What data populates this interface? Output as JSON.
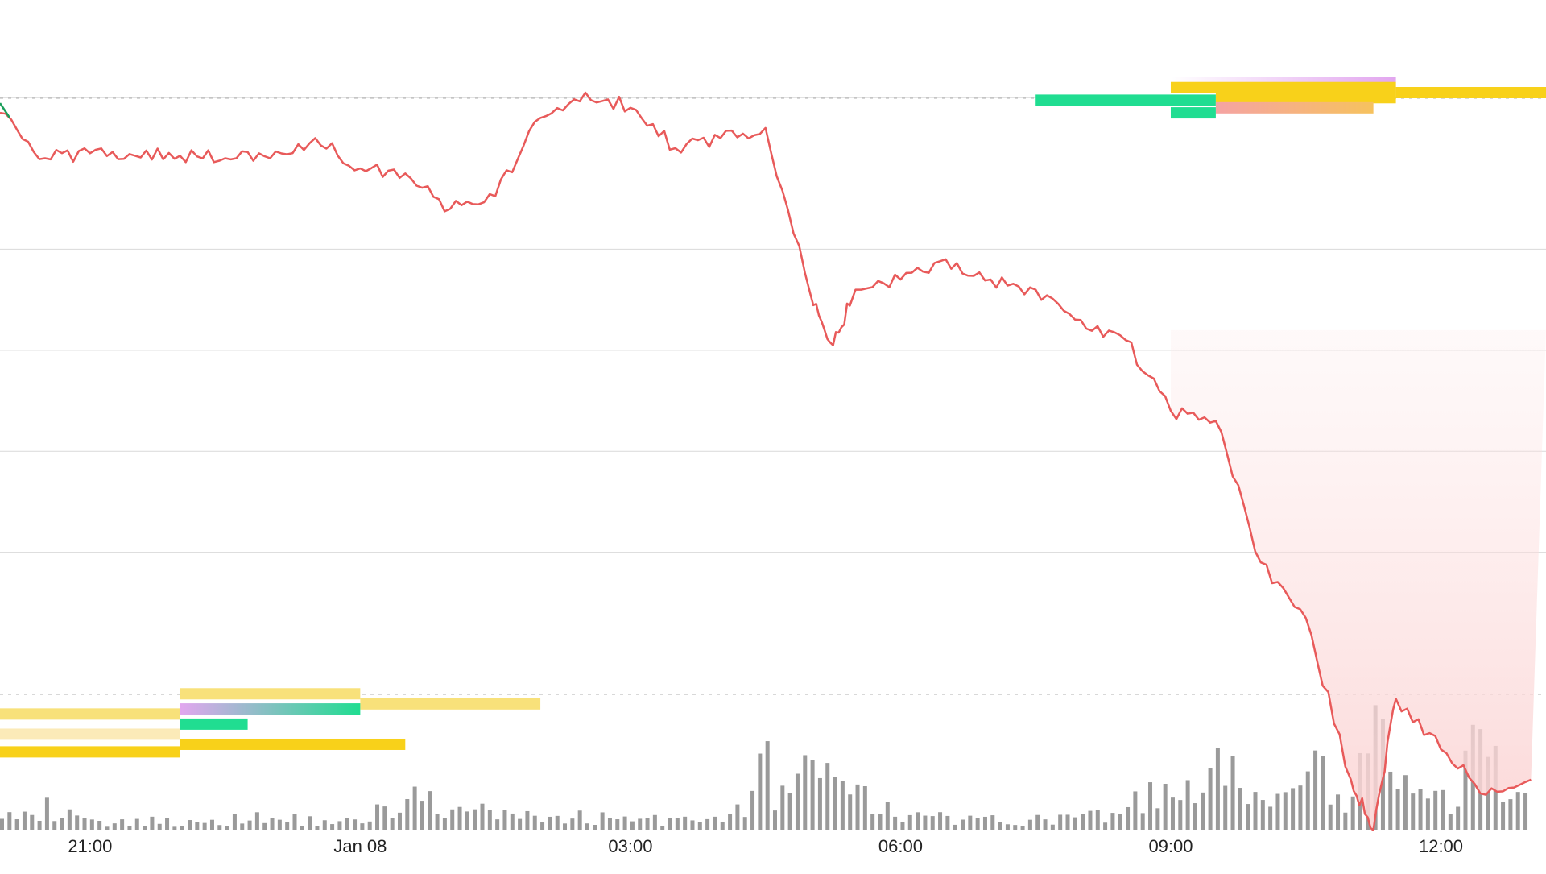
{
  "chart_data": {
    "type": "line",
    "x_tick_labels": [
      "21:00",
      "Jan 08",
      "03:00",
      "06:00",
      "09:00",
      "12:00"
    ],
    "x_ticks": [
      "2024-01-07T21:00",
      "2024-01-08T00:00",
      "2024-01-08T03:00",
      "2024-01-08T06:00",
      "2024-01-08T09:00",
      "2024-01-08T12:00"
    ],
    "x_range": [
      "2024-01-07T20:00",
      "2024-01-08T13:10"
    ],
    "y_axis_visible": false,
    "grid": "horizontal",
    "legend": "none",
    "price_series": {
      "x": [
        "2024-01-07T20:00",
        "2024-01-07T20:30",
        "2024-01-07T21:00",
        "2024-01-07T21:30",
        "2024-01-07T22:00",
        "2024-01-07T22:30",
        "2024-01-07T23:00",
        "2024-01-07T23:30",
        "2024-01-08T00:00",
        "2024-01-08T00:30",
        "2024-01-08T01:00",
        "2024-01-08T01:30",
        "2024-01-08T02:00",
        "2024-01-08T02:30",
        "2024-01-08T03:00",
        "2024-01-08T03:30",
        "2024-01-08T04:00",
        "2024-01-08T04:30",
        "2024-01-08T05:00",
        "2024-01-08T05:15",
        "2024-01-08T05:30",
        "2024-01-08T06:00",
        "2024-01-08T06:30",
        "2024-01-08T07:00",
        "2024-01-08T07:30",
        "2024-01-08T08:00",
        "2024-01-08T08:30",
        "2024-01-08T09:00",
        "2024-01-08T09:30",
        "2024-01-08T10:00",
        "2024-01-08T10:30",
        "2024-01-08T11:00",
        "2024-01-08T11:15",
        "2024-01-08T11:30",
        "2024-01-08T12:00",
        "2024-01-08T12:30",
        "2024-01-08T13:00"
      ],
      "y": [
        46550,
        46460,
        46470,
        46465,
        46465,
        46460,
        46460,
        46500,
        46440,
        46430,
        46360,
        46385,
        46540,
        46590,
        46560,
        46480,
        46500,
        46520,
        46190,
        46090,
        46200,
        46220,
        46260,
        46220,
        46200,
        46140,
        46100,
        45960,
        45940,
        45660,
        45550,
        45230,
        45130,
        45390,
        45290,
        45200,
        45230
      ],
      "up_color": "#1a9e5a",
      "down_color": "#e85a5a"
    },
    "reference_levels": [
      46590,
      45410
    ],
    "gridline_levels": [
      46580,
      46280,
      46080,
      45880,
      45680
    ],
    "volume": {
      "x": [
        "2024-01-07T20:00",
        "2024-01-07T21:00",
        "2024-01-07T22:00",
        "2024-01-07T23:00",
        "2024-01-08T00:00",
        "2024-01-08T00:30",
        "2024-01-08T01:00",
        "2024-01-08T02:00",
        "2024-01-08T03:00",
        "2024-01-08T04:00",
        "2024-01-08T04:30",
        "2024-01-08T05:00",
        "2024-01-08T06:00",
        "2024-01-08T07:00",
        "2024-01-08T08:00",
        "2024-01-08T09:00",
        "2024-01-08T09:30",
        "2024-01-08T10:00",
        "2024-01-08T10:30",
        "2024-01-08T11:00",
        "2024-01-08T11:15",
        "2024-01-08T11:30",
        "2024-01-08T12:00",
        "2024-01-08T12:30",
        "2024-01-08T13:00"
      ],
      "values": [
        30,
        6,
        8,
        10,
        7,
        30,
        16,
        12,
        10,
        7,
        50,
        45,
        12,
        8,
        10,
        32,
        48,
        30,
        45,
        40,
        85,
        35,
        30,
        75,
        20
      ],
      "color": "#9a9a9a"
    },
    "liquidity_bands": [
      {
        "price": 46610,
        "x_start": "2024-01-08T09:00",
        "x_end": "2024-01-08T11:30",
        "color": "#e2a6ef",
        "fade": "left"
      },
      {
        "price": 46600,
        "x_start": "2024-01-08T09:00",
        "x_end": "2024-01-08T11:30",
        "color": "#f8d11a"
      },
      {
        "price": 46590,
        "x_start": "2024-01-08T11:30",
        "x_end": "2024-01-08T13:10",
        "color": "#f8d11a"
      },
      {
        "price": 46580,
        "x_start": "2024-01-08T09:30",
        "x_end": "2024-01-08T11:30",
        "color": "#f8d11a"
      },
      {
        "price": 46575,
        "x_start": "2024-01-08T07:30",
        "x_end": "2024-01-08T09:30",
        "color": "#20dd91"
      },
      {
        "price": 46560,
        "x_start": "2024-01-08T09:30",
        "x_end": "2024-01-08T11:15",
        "color": "#f5a87a",
        "gradient_to": "#f6c25e"
      },
      {
        "price": 46550,
        "x_start": "2024-01-08T09:00",
        "x_end": "2024-01-08T09:30",
        "color": "#20dd91"
      },
      {
        "price": 45400,
        "x_start": "2024-01-07T22:00",
        "x_end": "2024-01-08T00:00",
        "color": "#f8e17a"
      },
      {
        "price": 45380,
        "x_start": "2024-01-08T00:00",
        "x_end": "2024-01-08T02:00",
        "color": "#f8e17a"
      },
      {
        "price": 45370,
        "x_start": "2024-01-07T22:00",
        "x_end": "2024-01-08T00:00",
        "color": "#e2a6ef",
        "gradient_to": "#20dd91"
      },
      {
        "price": 45360,
        "x_start": "2024-01-07T20:00",
        "x_end": "2024-01-07T22:00",
        "color": "#f8e17a"
      },
      {
        "price": 45340,
        "x_start": "2024-01-07T22:00",
        "x_end": "2024-01-07T22:45",
        "color": "#20dd91"
      },
      {
        "price": 45320,
        "x_start": "2024-01-07T20:00",
        "x_end": "2024-01-07T22:00",
        "color": "#fbeab8"
      },
      {
        "price": 45300,
        "x_start": "2024-01-07T22:00",
        "x_end": "2024-01-08T00:30",
        "color": "#f8d11a"
      },
      {
        "price": 45285,
        "x_start": "2024-01-07T20:00",
        "x_end": "2024-01-07T22:00",
        "color": "#f8d11a"
      }
    ]
  }
}
